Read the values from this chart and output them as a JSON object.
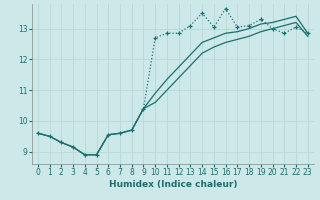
{
  "xlabel": "Humidex (Indice chaleur)",
  "ylabel": "",
  "bg_color": "#cce8e8",
  "grid_color": "#b8d8d8",
  "line_color": "#1a7070",
  "xlim": [
    -0.5,
    23.5
  ],
  "ylim": [
    8.6,
    13.8
  ],
  "yticks": [
    9,
    10,
    11,
    12,
    13
  ],
  "xticks": [
    0,
    1,
    2,
    3,
    4,
    5,
    6,
    7,
    8,
    9,
    10,
    11,
    12,
    13,
    14,
    15,
    16,
    17,
    18,
    19,
    20,
    21,
    22,
    23
  ],
  "line1_x": [
    0,
    1,
    2,
    3,
    4,
    5,
    6,
    7,
    8,
    9,
    10,
    11,
    12,
    13,
    14,
    15,
    16,
    17,
    18,
    19,
    20,
    21,
    22,
    23
  ],
  "line1_y": [
    9.6,
    9.5,
    9.3,
    9.15,
    8.9,
    8.9,
    9.55,
    9.6,
    9.7,
    10.4,
    12.7,
    12.85,
    12.85,
    13.1,
    13.5,
    13.05,
    13.65,
    13.05,
    13.1,
    13.3,
    13.0,
    12.85,
    13.05,
    12.85
  ],
  "line2_x": [
    0,
    1,
    2,
    3,
    4,
    5,
    6,
    7,
    8,
    9,
    10,
    11,
    12,
    13,
    14,
    15,
    16,
    17,
    18,
    19,
    20,
    21,
    22,
    23
  ],
  "line2_y": [
    9.6,
    9.5,
    9.3,
    9.15,
    8.9,
    8.9,
    9.55,
    9.6,
    9.7,
    10.4,
    10.9,
    11.35,
    11.75,
    12.15,
    12.55,
    12.7,
    12.85,
    12.9,
    13.0,
    13.15,
    13.2,
    13.3,
    13.4,
    12.85
  ],
  "line3_x": [
    0,
    1,
    2,
    3,
    4,
    5,
    6,
    7,
    8,
    9,
    10,
    11,
    12,
    13,
    14,
    15,
    16,
    17,
    18,
    19,
    20,
    21,
    22,
    23
  ],
  "line3_y": [
    9.6,
    9.5,
    9.3,
    9.15,
    8.9,
    8.9,
    9.55,
    9.6,
    9.7,
    10.4,
    10.6,
    11.0,
    11.4,
    11.8,
    12.2,
    12.4,
    12.55,
    12.65,
    12.75,
    12.9,
    13.0,
    13.1,
    13.2,
    12.75
  ]
}
